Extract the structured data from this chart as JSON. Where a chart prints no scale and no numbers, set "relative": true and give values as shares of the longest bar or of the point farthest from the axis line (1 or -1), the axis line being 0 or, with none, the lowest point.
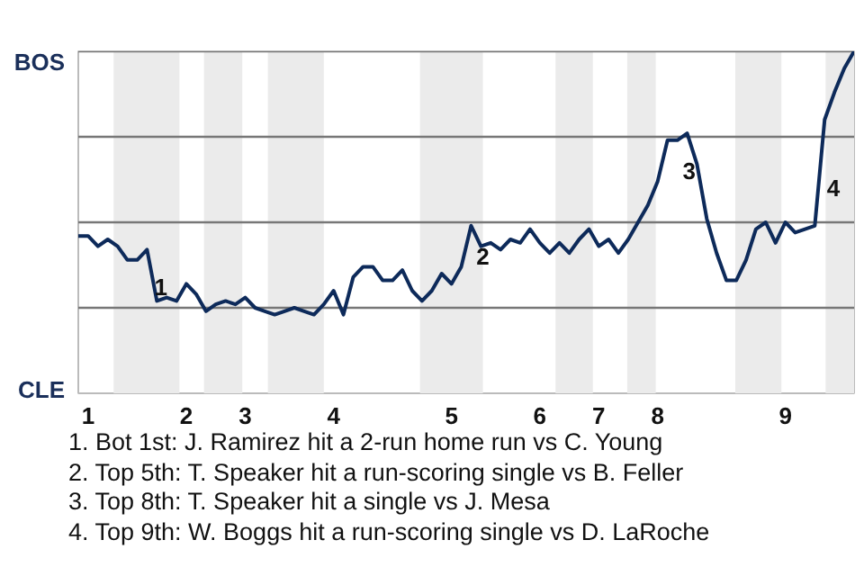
{
  "chart_data": {
    "type": "line",
    "relative": true,
    "categories": [
      null,
      "1",
      null,
      null,
      null,
      null,
      null,
      null,
      null,
      null,
      null,
      "2",
      null,
      null,
      null,
      null,
      null,
      "3",
      null,
      null,
      null,
      null,
      null,
      null,
      null,
      null,
      "4",
      null,
      null,
      null,
      null,
      null,
      null,
      null,
      null,
      null,
      null,
      null,
      "5",
      null,
      null,
      null,
      null,
      null,
      null,
      null,
      null,
      "6",
      null,
      null,
      null,
      null,
      null,
      "7",
      null,
      null,
      null,
      null,
      null,
      "8",
      null,
      null,
      null,
      null,
      null,
      null,
      null,
      null,
      null,
      null,
      null,
      null,
      "9",
      null,
      null,
      null,
      null,
      null,
      null,
      null
    ],
    "line_style": "solid",
    "series": [
      {
        "color": "#0d2a5a",
        "values": [
          0.46,
          0.46,
          0.43,
          0.45,
          0.43,
          0.39,
          0.39,
          0.42,
          0.27,
          0.28,
          0.27,
          0.32,
          0.29,
          0.24,
          0.26,
          0.27,
          0.26,
          0.28,
          0.25,
          0.24,
          0.23,
          0.24,
          0.25,
          0.24,
          0.23,
          0.26,
          0.3,
          0.23,
          0.34,
          0.37,
          0.37,
          0.33,
          0.33,
          0.36,
          0.3,
          0.27,
          0.3,
          0.35,
          0.32,
          0.37,
          0.49,
          0.43,
          0.44,
          0.42,
          0.45,
          0.44,
          0.48,
          0.44,
          0.41,
          0.44,
          0.41,
          0.45,
          0.48,
          0.43,
          0.45,
          0.41,
          0.45,
          0.5,
          0.55,
          0.62,
          0.74,
          0.74,
          0.76,
          0.67,
          0.51,
          0.41,
          0.33,
          0.33,
          0.39,
          0.48,
          0.5,
          0.44,
          0.5,
          0.47,
          0.48,
          0.49,
          0.8,
          0.88,
          0.95,
          1.0
        ]
      }
    ],
    "ref_lines": [
      {
        "axis": "y",
        "value": 0.25,
        "color": "#777777"
      },
      {
        "axis": "y",
        "value": 0.5,
        "color": "#777777"
      },
      {
        "axis": "y",
        "value": 0.75,
        "color": "#777777"
      },
      {
        "axis": "y",
        "value": 1,
        "color": "#777777"
      }
    ],
    "annotations": [
      "BOS",
      "CLE",
      "1",
      "2",
      "3",
      "4",
      "1. Bot 1st: J. Ramirez hit a 2-run home run vs C. Young",
      "2. Top 5th: T. Speaker hit a run-scoring single vs B. Feller",
      "3. Top 8th: T. Speaker hit a single vs J. Mesa",
      "4. Top 9th: W. Boggs hit a run-scoring single vs D. LaRoche"
    ]
  }
}
